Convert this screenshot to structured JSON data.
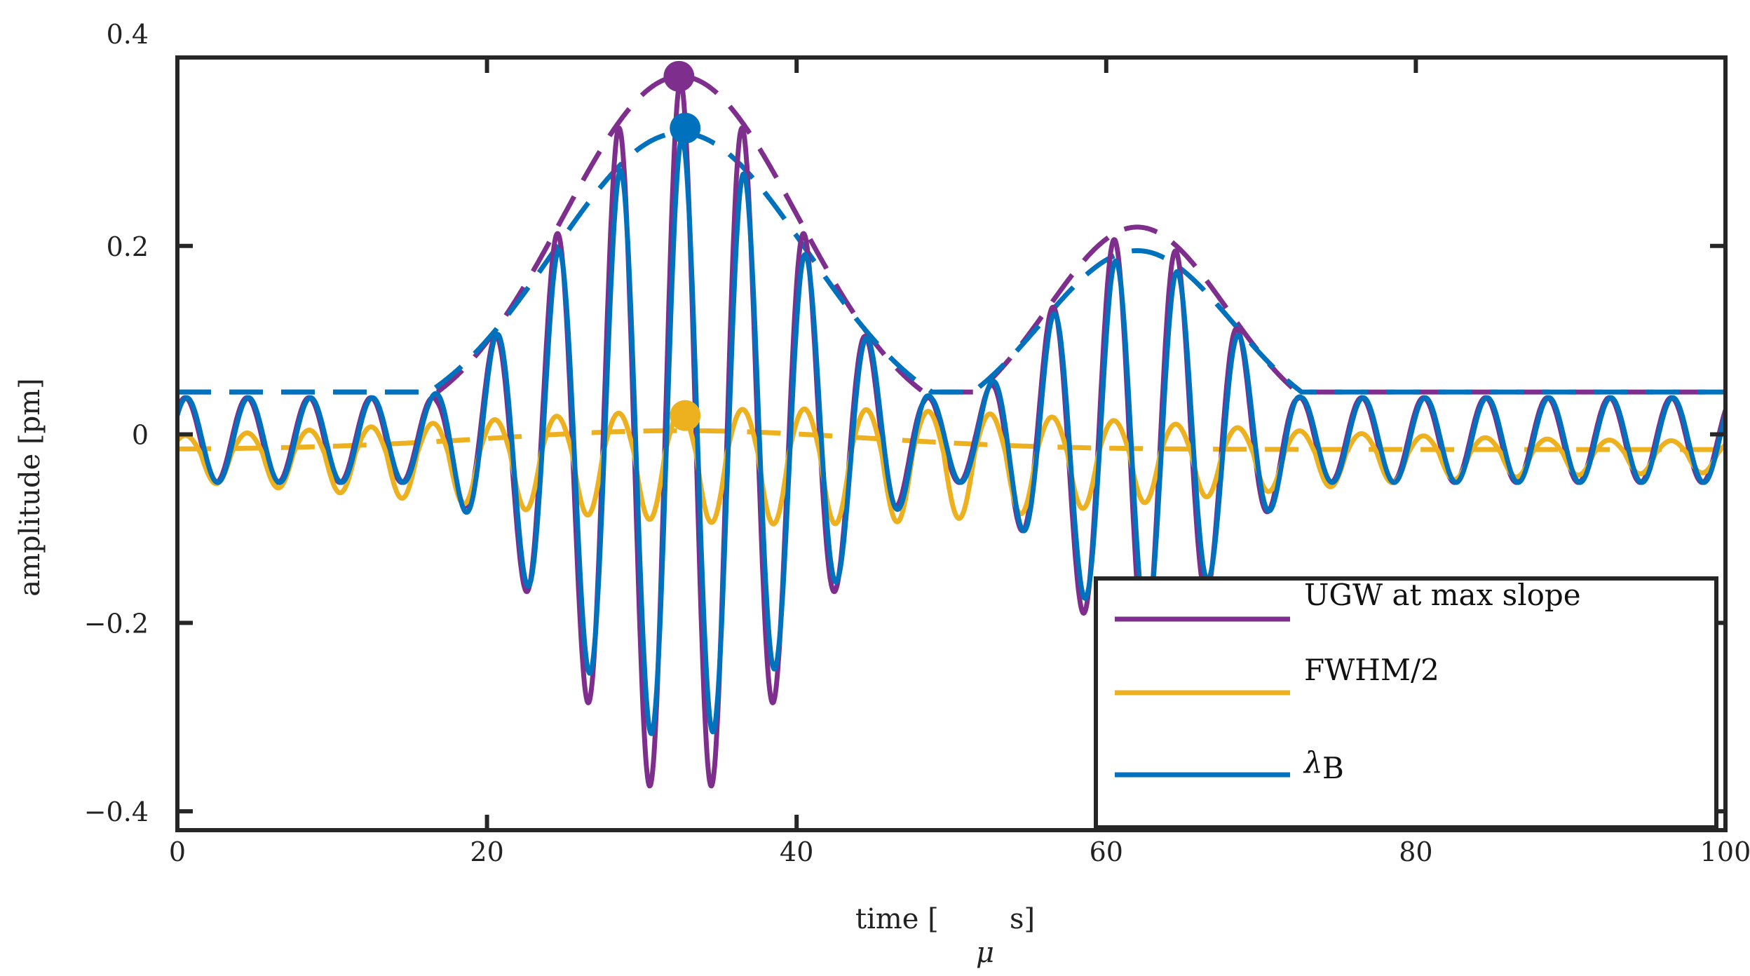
{
  "chart_data": {
    "type": "line",
    "xlabel": "time [ μs]",
    "xlabel_prefix": "time [",
    "xlabel_mu": "μ",
    "xlabel_suffix": "s]",
    "ylabel": "amplitude [pm]",
    "xlim": [
      0,
      100
    ],
    "ylim": [
      -0.42,
      0.4
    ],
    "xticks": [
      0,
      20,
      40,
      60,
      80,
      100
    ],
    "xtick_labels": [
      "0",
      "20",
      "40",
      "60",
      "80",
      "100"
    ],
    "yticks": [
      -0.4,
      -0.2,
      0,
      0.2,
      0.4
    ],
    "ytick_labels": [
      "−0.4",
      "−0.2",
      "0",
      "0.2",
      "0.4"
    ],
    "grid": false,
    "legend_position": "bottom-right",
    "series": [
      {
        "name": "UGW at max slope",
        "color": "#7E2F8E",
        "style": "solid",
        "envelope_peaks": [
          {
            "x": 32.5,
            "y": 0.38,
            "sigma": 7.6
          },
          {
            "x": 62.0,
            "y": 0.22,
            "sigma": 5.8
          }
        ],
        "tail_amplitude": 0.045,
        "offset": -0.02,
        "period": 4.0,
        "phase_x": 32.5,
        "marker": {
          "x": 32.4,
          "y": 0.38
        }
      },
      {
        "name": "FWHM/2",
        "color": "#EDB120",
        "style": "solid",
        "envelope_peaks": [
          {
            "x": 32.5,
            "y": 0.02,
            "sigma": 12
          },
          {
            "x": 62.0,
            "y": 0.0,
            "sigma": 10
          }
        ],
        "tail_amplitude": 0.0,
        "offset": -0.02,
        "period": 4.0,
        "phase_x": 32.5,
        "oscillation_scale": 0.035,
        "marker": {
          "x": 32.8,
          "y": 0.02
        }
      },
      {
        "name": "λB",
        "color": "#0072BD",
        "style": "solid",
        "envelope_peaks": [
          {
            "x": 32.5,
            "y": 0.32,
            "sigma": 8.2
          },
          {
            "x": 62.0,
            "y": 0.195,
            "sigma": 6.2
          }
        ],
        "tail_amplitude": 0.045,
        "offset": -0.02,
        "period": 4.0,
        "phase_x": 32.6,
        "marker": {
          "x": 32.8,
          "y": 0.325
        }
      }
    ],
    "legend": [
      {
        "label": "UGW at max slope",
        "color": "#7E2F8E"
      },
      {
        "label": "FWHM/2",
        "color": "#EDB120"
      },
      {
        "label_main": "λ",
        "label_sub": "B",
        "color": "#0072BD"
      }
    ]
  }
}
